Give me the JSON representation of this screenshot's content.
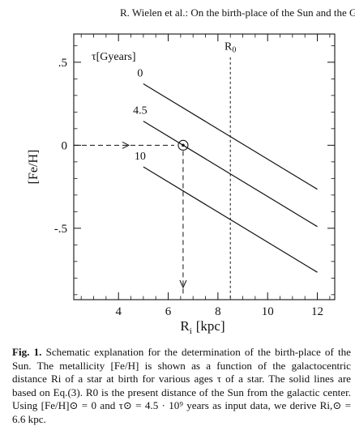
{
  "header": {
    "running_title": "R. Wielen et al.: On the birth-place of the Sun and the Galaxy"
  },
  "chart_data": {
    "type": "line",
    "xlabel": "R",
    "xlabel_sub": "i",
    "xlabel_unit": "[kpc]",
    "ylabel": "[Fe/H]",
    "xlim": [
      2.2,
      12.7
    ],
    "ylim": [
      -0.93,
      0.67
    ],
    "x_ticks": [
      4,
      6,
      8,
      10,
      12
    ],
    "x_tick_labels": [
      "4",
      "6",
      "8",
      "10",
      "12"
    ],
    "y_ticks": [
      0.5,
      0,
      -0.5
    ],
    "y_tick_labels": [
      ".5",
      "0",
      "-.5"
    ],
    "legend_title": "τ[Gyears]",
    "series": [
      {
        "name": "0",
        "x": [
          5,
          12
        ],
        "y": [
          0.37,
          -0.265
        ]
      },
      {
        "name": "4.5",
        "x": [
          5,
          12
        ],
        "y": [
          0.145,
          -0.49
        ]
      },
      {
        "name": "10",
        "x": [
          5,
          12
        ],
        "y": [
          -0.13,
          -0.765
        ]
      }
    ],
    "reference_line": {
      "label": "R",
      "label_sub": "0",
      "x": 8.5
    },
    "marker": {
      "x": 6.6,
      "y": 0
    }
  },
  "caption": {
    "label": "Fig. 1.",
    "text": "Schematic explanation for the determination of the birth-place of the Sun. The metallicity [Fe/H] is shown as a function of the galactocentric distance Ri of a star at birth for various ages τ of a star. The solid lines are based on Eq.(3). R0 is the present distance of the Sun from the galactic center. Using [Fe/H]⊙ = 0 and τ⊙ = 4.5 · 10⁹ years as input data, we derive Ri,⊙ = 6.6 kpc."
  }
}
